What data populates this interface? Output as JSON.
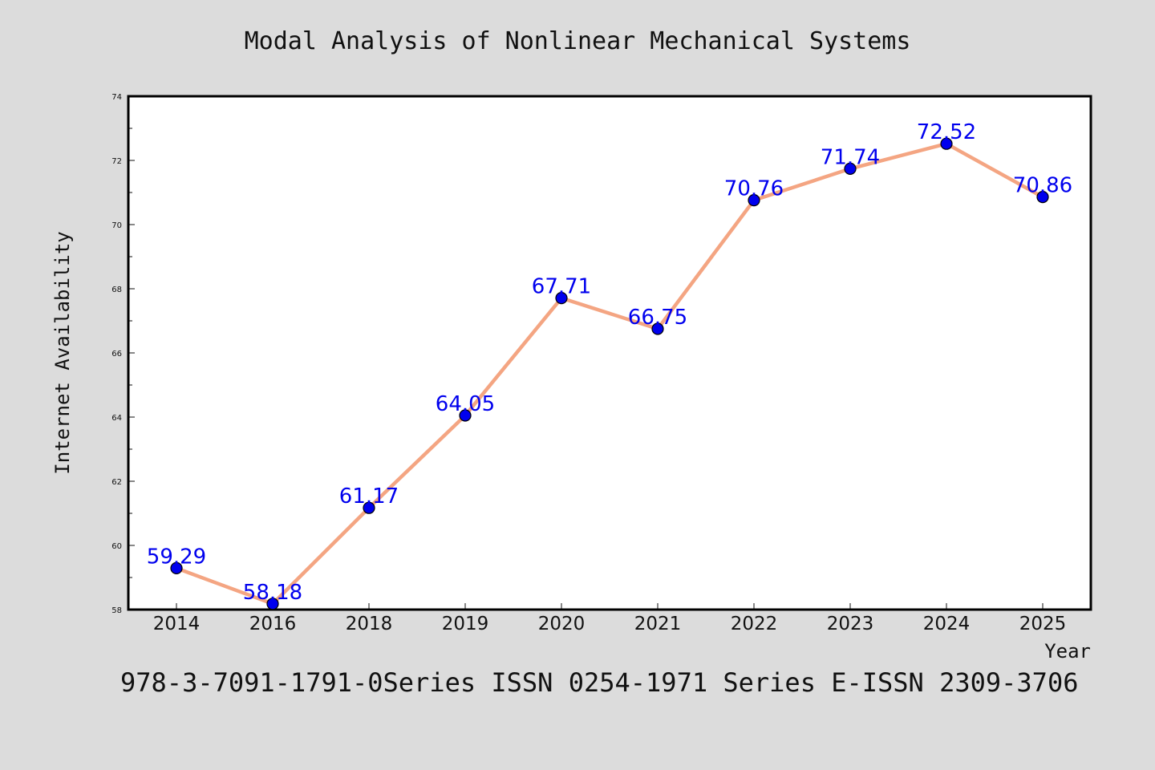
{
  "figure": {
    "title": "Modal Analysis of Nonlinear Mechanical Systems",
    "footer": "978-3-7091-1791-0Series ISSN 0254-1971 Series E-ISSN 2309-3706",
    "background_color": "#dcdcdc",
    "plot_background_color": "#ffffff"
  },
  "chart_data": {
    "type": "line",
    "title": "Modal Analysis of Nonlinear Mechanical Systems",
    "xlabel": "Year",
    "ylabel": "Internet Availability",
    "categories": [
      "2014",
      "2016",
      "2018",
      "2019",
      "2020",
      "2021",
      "2022",
      "2023",
      "2024",
      "2025"
    ],
    "series": [
      {
        "values": [
          59.29,
          58.18,
          61.17,
          64.05,
          67.71,
          66.75,
          70.76,
          71.74,
          72.52,
          70.86
        ],
        "line_color": "#f4a582",
        "marker_color": "#0000ee",
        "marker": "circle"
      }
    ],
    "data_labels": [
      "59.29",
      "58.18",
      "61.17",
      "64.05",
      "67.71",
      "66.75",
      "70.76",
      "71.74",
      "72.52",
      "70.86"
    ],
    "ylim": [
      58,
      74
    ],
    "yticks": [
      58,
      60,
      62,
      64,
      66,
      68,
      70,
      72,
      74
    ],
    "ytick_labels": [
      "58",
      "60",
      "62",
      "64",
      "66",
      "68",
      "70",
      "72",
      "74"
    ],
    "grid": false,
    "legend": "none"
  }
}
